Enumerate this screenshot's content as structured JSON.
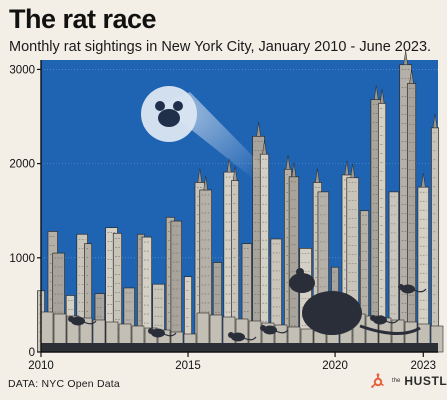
{
  "header": {
    "title": "The rat race",
    "subtitle": "Monthly rat sightings in New York City, January 2010 - June 2023."
  },
  "footer": {
    "source": "DATA: NYC Open Data",
    "brand_prefix": "the",
    "brand_name": "HUSTLE"
  },
  "colors": {
    "background": "#f3efe6",
    "sky": "#1f63b3",
    "buildings": "#b5b1a8",
    "rat_silhouette": "#2a2e38",
    "grid": "#9bb3d4",
    "beacon": "#dbe6f2"
  },
  "icons": {
    "beacon": "rat-signal-icon",
    "brand": "hubspot-sprocket-icon"
  },
  "chart_data": {
    "type": "area",
    "title": "The rat race",
    "subtitle": "Monthly rat sightings in New York City, January 2010 - June 2023.",
    "xlabel": "",
    "ylabel": "",
    "xlim": [
      2010,
      2023.5
    ],
    "ylim": [
      0,
      3100
    ],
    "x_ticks": [
      "2010",
      "2015",
      "2020",
      "2023"
    ],
    "x_tick_values": [
      2010,
      2015,
      2020,
      2023
    ],
    "y_ticks": [
      "0",
      "1000",
      "2000",
      "3000"
    ],
    "y_tick_values": [
      0,
      1000,
      2000,
      3000
    ],
    "grid": true,
    "note": "Monthly values rendered as a city-skyline silhouette",
    "series": [
      {
        "x": [
          2010.0,
          2010.4,
          2010.6,
          2011.0,
          2011.4,
          2011.6,
          2012.0,
          2012.4,
          2012.6,
          2013.0,
          2013.4,
          2013.6,
          2014.0,
          2014.4,
          2014.6,
          2015.0,
          2015.4,
          2015.6,
          2016.0,
          2016.4,
          2016.6,
          2017.0,
          2017.4,
          2017.6,
          2018.0,
          2018.4,
          2018.6,
          2019.0,
          2019.4,
          2019.6,
          2020.0,
          2020.4,
          2020.6,
          2021.0,
          2021.4,
          2021.6,
          2022.0,
          2022.4,
          2022.6,
          2023.0,
          2023.4
        ],
        "values": [
          650,
          1280,
          1050,
          600,
          1250,
          1150,
          620,
          1320,
          1260,
          680,
          1250,
          1220,
          720,
          1430,
          1390,
          800,
          1800,
          1720,
          950,
          1910,
          1820,
          1150,
          2290,
          2100,
          1200,
          1940,
          1860,
          1100,
          1800,
          1700,
          900,
          1880,
          1850,
          1500,
          2680,
          2640,
          1700,
          3050,
          2850,
          1750,
          2380
        ]
      }
    ]
  }
}
